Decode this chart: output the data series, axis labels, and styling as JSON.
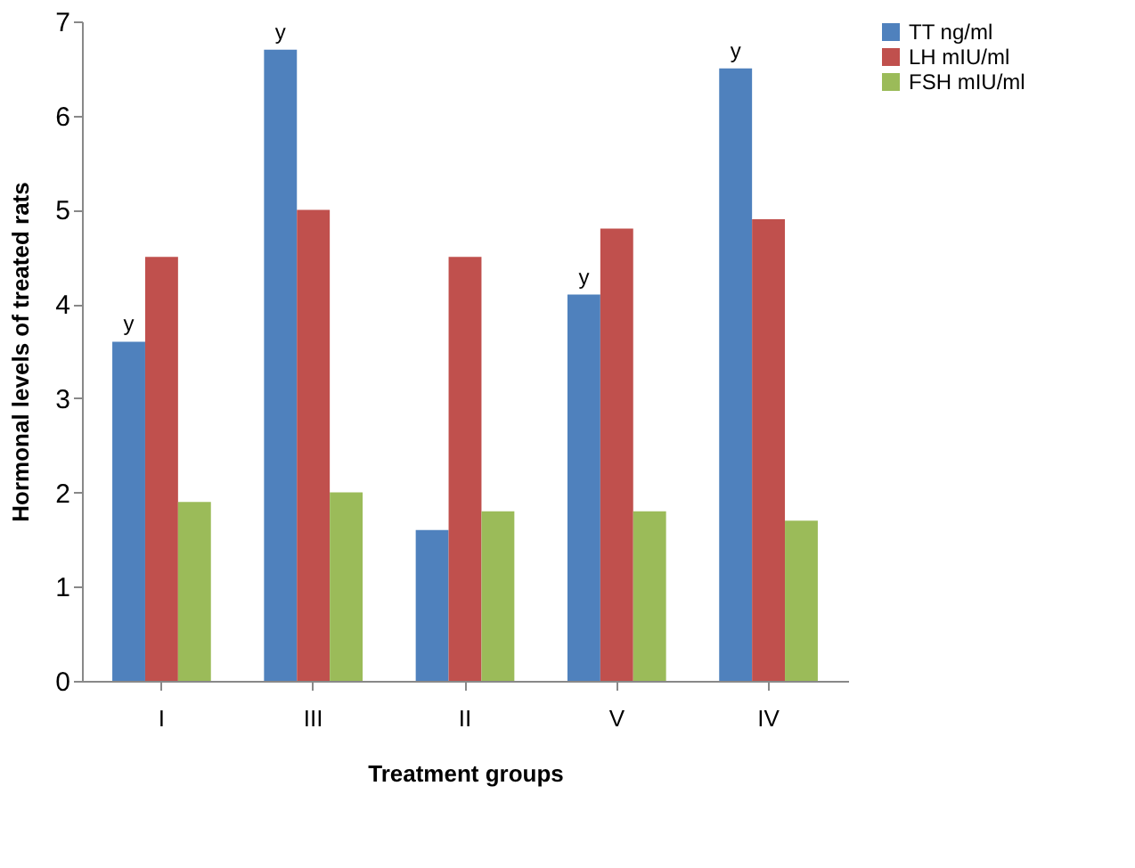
{
  "chart_data": {
    "type": "bar",
    "xlabel": "Treatment groups",
    "ylabel": "Hormonal levels of treated rats",
    "categories": [
      "I",
      "III",
      "II",
      "V",
      "IV"
    ],
    "series": [
      {
        "name": "TT ng/ml",
        "color": "#4f81bd",
        "values": [
          3.6,
          6.7,
          1.6,
          4.1,
          6.5
        ],
        "value_labels": [
          "y",
          "y",
          null,
          "y",
          "y"
        ]
      },
      {
        "name": "LH mIU/ml",
        "color": "#c0504d",
        "values": [
          4.5,
          5.0,
          4.5,
          4.8,
          4.9
        ]
      },
      {
        "name": "FSH mIU/ml",
        "color": "#9bbb59",
        "values": [
          1.9,
          2.0,
          1.8,
          1.8,
          1.7
        ]
      }
    ],
    "ylim": [
      0,
      7
    ],
    "yticks": [
      0,
      1,
      2,
      3,
      4,
      5,
      6,
      7
    ],
    "grid": false,
    "legend": "right"
  }
}
